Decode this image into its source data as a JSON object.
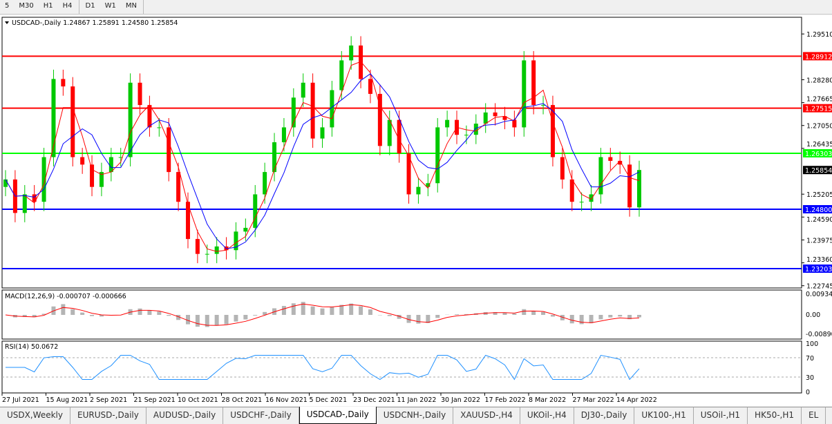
{
  "timeframes": [
    "5",
    "M30",
    "H1",
    "H4",
    "D1",
    "W1",
    "MN"
  ],
  "active_timeframe": "D1",
  "chart": {
    "header": "USDCAD-,Daily  1.24867 1.25891 1.24580 1.25854",
    "symbol": "USDCAD-,Daily"
  },
  "chart_data": {
    "type": "candlestick",
    "closes": [
      1.256,
      1.247,
      1.252,
      1.25,
      1.262,
      1.283,
      1.281,
      1.262,
      1.26,
      1.254,
      1.258,
      1.262,
      1.262,
      1.282,
      1.276,
      1.27,
      1.27,
      1.258,
      1.25,
      1.24,
      1.236,
      1.236,
      1.238,
      1.237,
      1.242,
      1.243,
      1.252,
      1.258,
      1.266,
      1.27,
      1.278,
      1.282,
      1.267,
      1.27,
      1.28,
      1.288,
      1.292,
      1.283,
      1.279,
      1.265,
      1.272,
      1.263,
      1.252,
      1.254,
      1.255,
      1.27,
      1.272,
      1.268,
      1.268,
      1.271,
      1.274,
      1.273,
      1.272,
      1.27,
      1.288,
      1.276,
      1.276,
      1.262,
      1.256,
      1.25,
      1.25,
      1.252,
      1.262,
      1.261,
      1.26,
      1.2485,
      1.25854
    ],
    "y_ticks": [
      "1.29510",
      "1.28280",
      "1.27665",
      "1.27050",
      "1.26435",
      "1.25205",
      "1.24590",
      "1.23975",
      "1.23360",
      "1.22745"
    ],
    "ylim": [
      1.227,
      1.299
    ],
    "x_ticks": [
      "27 Jul 2021",
      "15 Aug 2021",
      "2 Sep 2021",
      "21 Sep 2021",
      "10 Oct 2021",
      "28 Oct 2021",
      "16 Nov 2021",
      "5 Dec 2021",
      "23 Dec 2021",
      "11 Jan 2022",
      "30 Jan 2022",
      "17 Feb 2022",
      "8 Mar 2022",
      "27 Mar 2022",
      "14 Apr 2022"
    ],
    "levels": [
      {
        "value": "1.28912",
        "color": "#ff0000"
      },
      {
        "value": "1.27515",
        "color": "#ff0000"
      },
      {
        "value": "1.26303",
        "color": "#00ff00"
      },
      {
        "value": "1.24800",
        "color": "#0000ff"
      },
      {
        "value": "1.23203",
        "color": "#0000ff"
      }
    ],
    "current_price": "1.25854",
    "macd": {
      "label": "MACD(12,26,9) -0.000707 -0.000666",
      "ticks": [
        "0.009345",
        "0.00",
        "-0.00890"
      ]
    },
    "rsi": {
      "label": "RSI(14) 50.0672",
      "ticks": [
        "100",
        "70",
        "30",
        "0"
      ]
    },
    "colors": {
      "bull": "#00c800",
      "bear": "#ff0000",
      "ma_fast": "#ff0000",
      "ma_slow": "#0000ff",
      "rsi": "#1e90ff"
    }
  },
  "tabs": [
    "USDX,Weekly",
    "EURUSD-,Daily",
    "AUDUSD-,Daily",
    "USDCHF-,Daily",
    "USDCAD-,Daily",
    "USDCNH-,Daily",
    "XAUUSD-,H4",
    "UKOil-,H4",
    "DJ30-,Daily",
    "UK100-,H1",
    "USOil-,H1",
    "HK50-,H1",
    "EL"
  ],
  "active_tab": "USDCAD-,Daily"
}
